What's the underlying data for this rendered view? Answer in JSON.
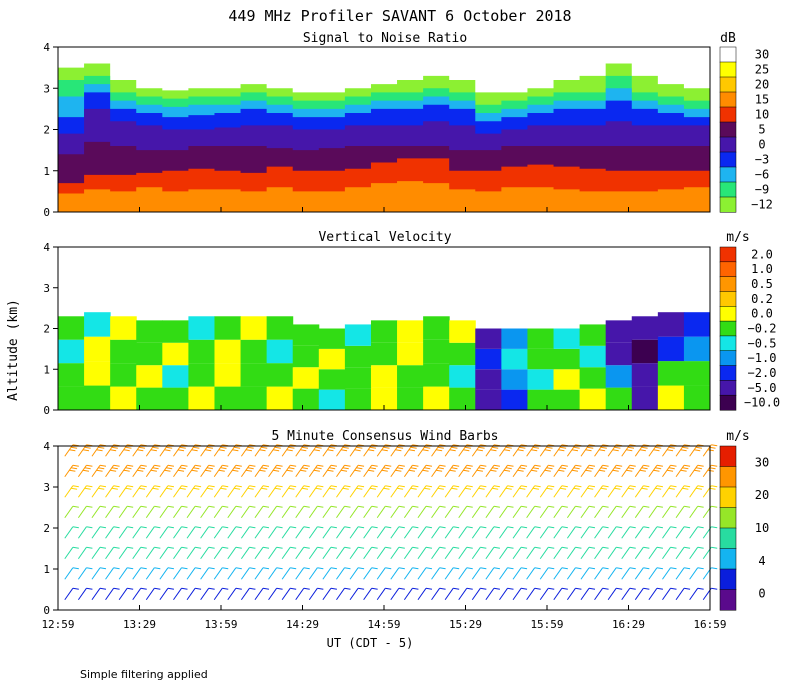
{
  "chart_data": {
    "type": "heatmap",
    "title": "449 MHz Profiler SAVANT  6 October 2018",
    "ylabel": "Altitude (km)",
    "xlabel": "UT (CDT - 5)",
    "footnote": "Simple filtering applied",
    "x_ticks": [
      "12:59",
      "13:29",
      "13:59",
      "14:29",
      "14:59",
      "15:29",
      "15:59",
      "16:29",
      "16:59"
    ],
    "x_range_minutes": [
      0,
      240
    ],
    "y_ticks": [
      0,
      1,
      2,
      3,
      4
    ],
    "ylim": [
      0,
      4
    ],
    "panels": [
      {
        "id": "snr",
        "title": "Signal to Noise Ratio",
        "unit": "dB",
        "colorbar_labels": [
          "30",
          "25",
          "20",
          "15",
          "10",
          "5",
          "0",
          "−3",
          "−6",
          "−9",
          "−12"
        ],
        "colors": [
          "#ffffff",
          "#ffff00",
          "#ffc800",
          "#ff8c00",
          "#f03200",
          "#5a0a5a",
          "#4616aa",
          "#0a28f0",
          "#1eb4f0",
          "#28e678",
          "#8cf032"
        ],
        "bands": [
          {
            "color": "#f03200",
            "top": [
              0.7,
              0.9,
              0.9,
              0.95,
              1.0,
              1.05,
              1.0,
              0.95,
              1.1,
              1.0,
              1.0,
              1.05,
              1.2,
              1.3,
              1.3,
              1.0,
              1.0,
              1.1,
              1.15,
              1.1,
              1.05,
              1.0,
              1.0,
              1.0,
              1.0
            ]
          },
          {
            "color": "#5a0a5a",
            "top": [
              1.4,
              1.7,
              1.6,
              1.5,
              1.5,
              1.6,
              1.6,
              1.6,
              1.55,
              1.5,
              1.55,
              1.6,
              1.6,
              1.6,
              1.6,
              1.5,
              1.5,
              1.6,
              1.6,
              1.6,
              1.6,
              1.6,
              1.6,
              1.6,
              1.6
            ]
          },
          {
            "color": "#4616aa",
            "top": [
              1.9,
              2.5,
              2.2,
              2.1,
              2.0,
              2.0,
              2.05,
              2.1,
              2.1,
              2.0,
              2.0,
              2.1,
              2.1,
              2.1,
              2.2,
              2.1,
              1.9,
              2.0,
              2.1,
              2.1,
              2.1,
              2.2,
              2.1,
              2.1,
              2.1
            ]
          },
          {
            "color": "#0a28f0",
            "top": [
              2.3,
              2.9,
              2.5,
              2.4,
              2.3,
              2.35,
              2.4,
              2.5,
              2.4,
              2.3,
              2.3,
              2.4,
              2.5,
              2.5,
              2.6,
              2.5,
              2.2,
              2.3,
              2.4,
              2.5,
              2.5,
              2.7,
              2.5,
              2.4,
              2.3
            ]
          },
          {
            "color": "#1eb4f0",
            "top": [
              2.8,
              3.1,
              2.7,
              2.6,
              2.55,
              2.6,
              2.6,
              2.7,
              2.6,
              2.5,
              2.5,
              2.6,
              2.7,
              2.7,
              2.8,
              2.7,
              2.4,
              2.5,
              2.6,
              2.7,
              2.7,
              3.0,
              2.7,
              2.6,
              2.5
            ]
          },
          {
            "color": "#28e678",
            "top": [
              3.2,
              3.3,
              2.9,
              2.8,
              2.75,
              2.8,
              2.8,
              2.9,
              2.8,
              2.7,
              2.7,
              2.8,
              2.9,
              2.9,
              3.0,
              2.9,
              2.6,
              2.7,
              2.8,
              2.9,
              2.9,
              3.3,
              2.9,
              2.8,
              2.7
            ]
          },
          {
            "color": "#8cf032",
            "top": [
              3.5,
              3.6,
              3.2,
              3.0,
              2.95,
              3.0,
              3.0,
              3.1,
              3.0,
              2.9,
              2.9,
              3.0,
              3.1,
              3.2,
              3.3,
              3.2,
              2.9,
              2.9,
              3.0,
              3.2,
              3.3,
              3.6,
              3.3,
              3.1,
              3.0
            ]
          }
        ]
      },
      {
        "id": "vv",
        "title": "Vertical Velocity",
        "unit": "m/s",
        "colorbar_labels": [
          "2.0",
          "1.0",
          "0.5",
          "0.2",
          "0.0",
          "−0.2",
          "−0.5",
          "−1.0",
          "−2.0",
          "−5.0",
          "−10.0"
        ],
        "colors": [
          "#f03200",
          "#ff6400",
          "#ff9600",
          "#ffc800",
          "#ffff00",
          "#32dc14",
          "#14e6e6",
          "#0a96f0",
          "#0a28f0",
          "#4616aa",
          "#3c0050"
        ],
        "data_top": [
          2.3,
          2.4,
          2.3,
          2.2,
          2.2,
          2.3,
          2.3,
          2.3,
          2.3,
          2.1,
          2.0,
          2.1,
          2.2,
          2.2,
          2.3,
          2.2,
          2.0,
          2.0,
          2.0,
          2.0,
          2.1,
          2.2,
          2.3,
          2.4,
          2.4
        ],
        "columns": [
          [
            0,
            5,
            5,
            6,
            5
          ],
          [
            1,
            5,
            4,
            4,
            6
          ],
          [
            2,
            4,
            5,
            5,
            4
          ],
          [
            3,
            5,
            4,
            5,
            5
          ],
          [
            4,
            5,
            6,
            4,
            5
          ],
          [
            5,
            4,
            5,
            5,
            6
          ],
          [
            6,
            5,
            4,
            4,
            5
          ],
          [
            7,
            5,
            5,
            5,
            4
          ],
          [
            8,
            4,
            5,
            6,
            5
          ],
          [
            9,
            5,
            4,
            5,
            5
          ],
          [
            10,
            6,
            5,
            4,
            5
          ],
          [
            11,
            5,
            5,
            5,
            6
          ],
          [
            12,
            4,
            4,
            5,
            5
          ],
          [
            13,
            5,
            5,
            4,
            4
          ],
          [
            14,
            4,
            5,
            5,
            5
          ],
          [
            15,
            5,
            6,
            5,
            4
          ],
          [
            16,
            9,
            9,
            8,
            9
          ],
          [
            17,
            8,
            7,
            6,
            7
          ],
          [
            18,
            5,
            6,
            5,
            5
          ],
          [
            19,
            5,
            4,
            5,
            6
          ],
          [
            20,
            4,
            5,
            6,
            5
          ],
          [
            21,
            5,
            7,
            9,
            9
          ],
          [
            22,
            9,
            9,
            10,
            9
          ],
          [
            23,
            4,
            5,
            8,
            9
          ],
          [
            24,
            5,
            5,
            7,
            8
          ]
        ]
      },
      {
        "id": "wind",
        "title": "5 Minute Consensus Wind Barbs",
        "unit": "m/s",
        "colorbar_labels": [
          "30",
          "20",
          "10",
          "4",
          "0"
        ],
        "colors": [
          "#e61e00",
          "#ff9600",
          "#ffd200",
          "#96e628",
          "#28dca0",
          "#14b4f0",
          "#0a1edc",
          "#5a0a8c"
        ],
        "speed_profile": [
          {
            "alt": 0.25,
            "speed": 4
          },
          {
            "alt": 0.75,
            "speed": 6
          },
          {
            "alt": 1.25,
            "speed": 8
          },
          {
            "alt": 1.75,
            "speed": 10
          },
          {
            "alt": 2.25,
            "speed": 14
          },
          {
            "alt": 2.75,
            "speed": 20
          },
          {
            "alt": 3.25,
            "speed": 26
          },
          {
            "alt": 3.75,
            "speed": 28
          }
        ]
      }
    ]
  }
}
